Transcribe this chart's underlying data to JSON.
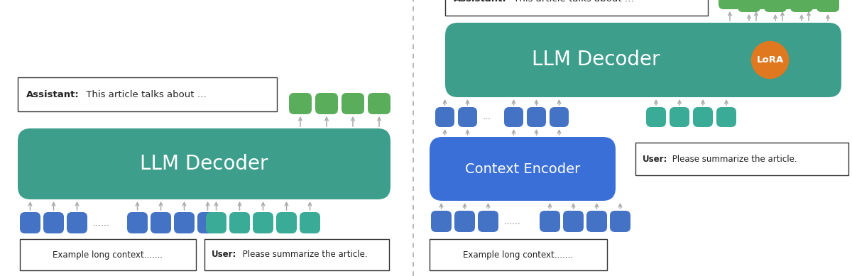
{
  "bg_color": "#ffffff",
  "teal_decoder_color": "#3d9e8c",
  "blue_token_color": "#4472c4",
  "teal_token_color": "#3aab96",
  "green_output_color": "#5aad5a",
  "blue_encoder_color": "#3a6fd8",
  "orange_lora_color": "#e07820",
  "divider_color": "#aaaaaa",
  "arrow_color": "#aaaaaa",
  "text_color_white": "#ffffff",
  "text_color_dark": "#222222",
  "assistant_bold": "Assistant:",
  "assistant_text": " This article talks about …",
  "user_bold": "User:",
  "user_text": " Please summarize the article.",
  "context_text": "Example long context.......",
  "decoder_label": "LLM Decoder",
  "encoder_label": "Context Encoder",
  "lora_label": "LoRA"
}
